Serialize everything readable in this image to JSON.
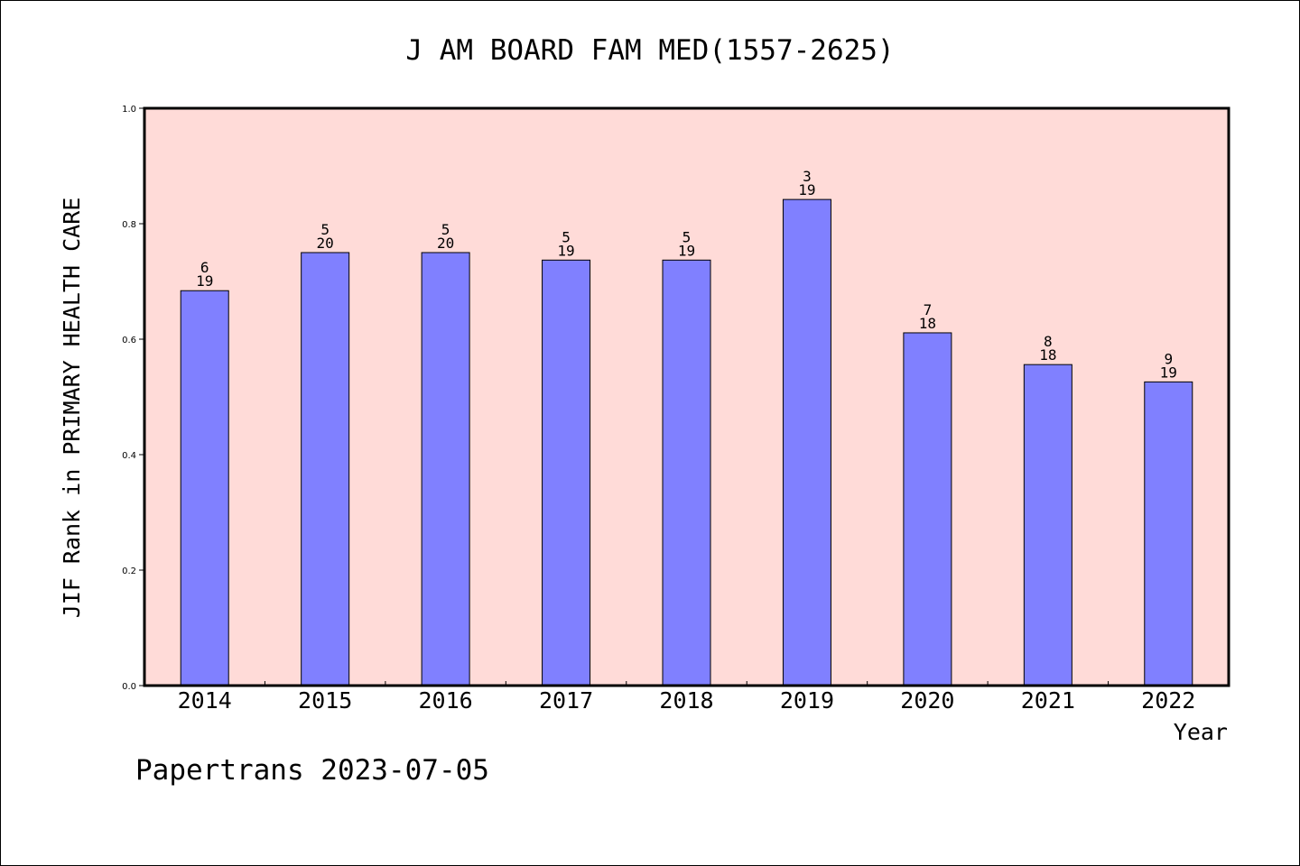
{
  "chart_data": {
    "type": "bar",
    "title": "J AM BOARD FAM MED(1557-2625)",
    "xlabel": "Year",
    "ylabel": "JIF Rank in PRIMARY HEALTH CARE",
    "ylim": [
      0,
      1.0
    ],
    "yticks": [
      "0.0",
      "0.2",
      "0.4",
      "0.6",
      "0.8",
      "1.0"
    ],
    "categories": [
      "2014",
      "2015",
      "2016",
      "2017",
      "2018",
      "2019",
      "2020",
      "2021",
      "2022"
    ],
    "values": [
      0.684,
      0.75,
      0.75,
      0.737,
      0.737,
      0.842,
      0.611,
      0.556,
      0.526
    ],
    "rank_labels": [
      "6",
      "5",
      "5",
      "5",
      "5",
      "3",
      "7",
      "8",
      "9"
    ],
    "total_labels": [
      "19",
      "20",
      "20",
      "19",
      "19",
      "19",
      "18",
      "18",
      "19"
    ],
    "colors": {
      "plot_bg": "#ffdbd8",
      "bar": "#8080ff",
      "axis": "#000000"
    }
  },
  "footer": "Papertrans 2023-07-05"
}
